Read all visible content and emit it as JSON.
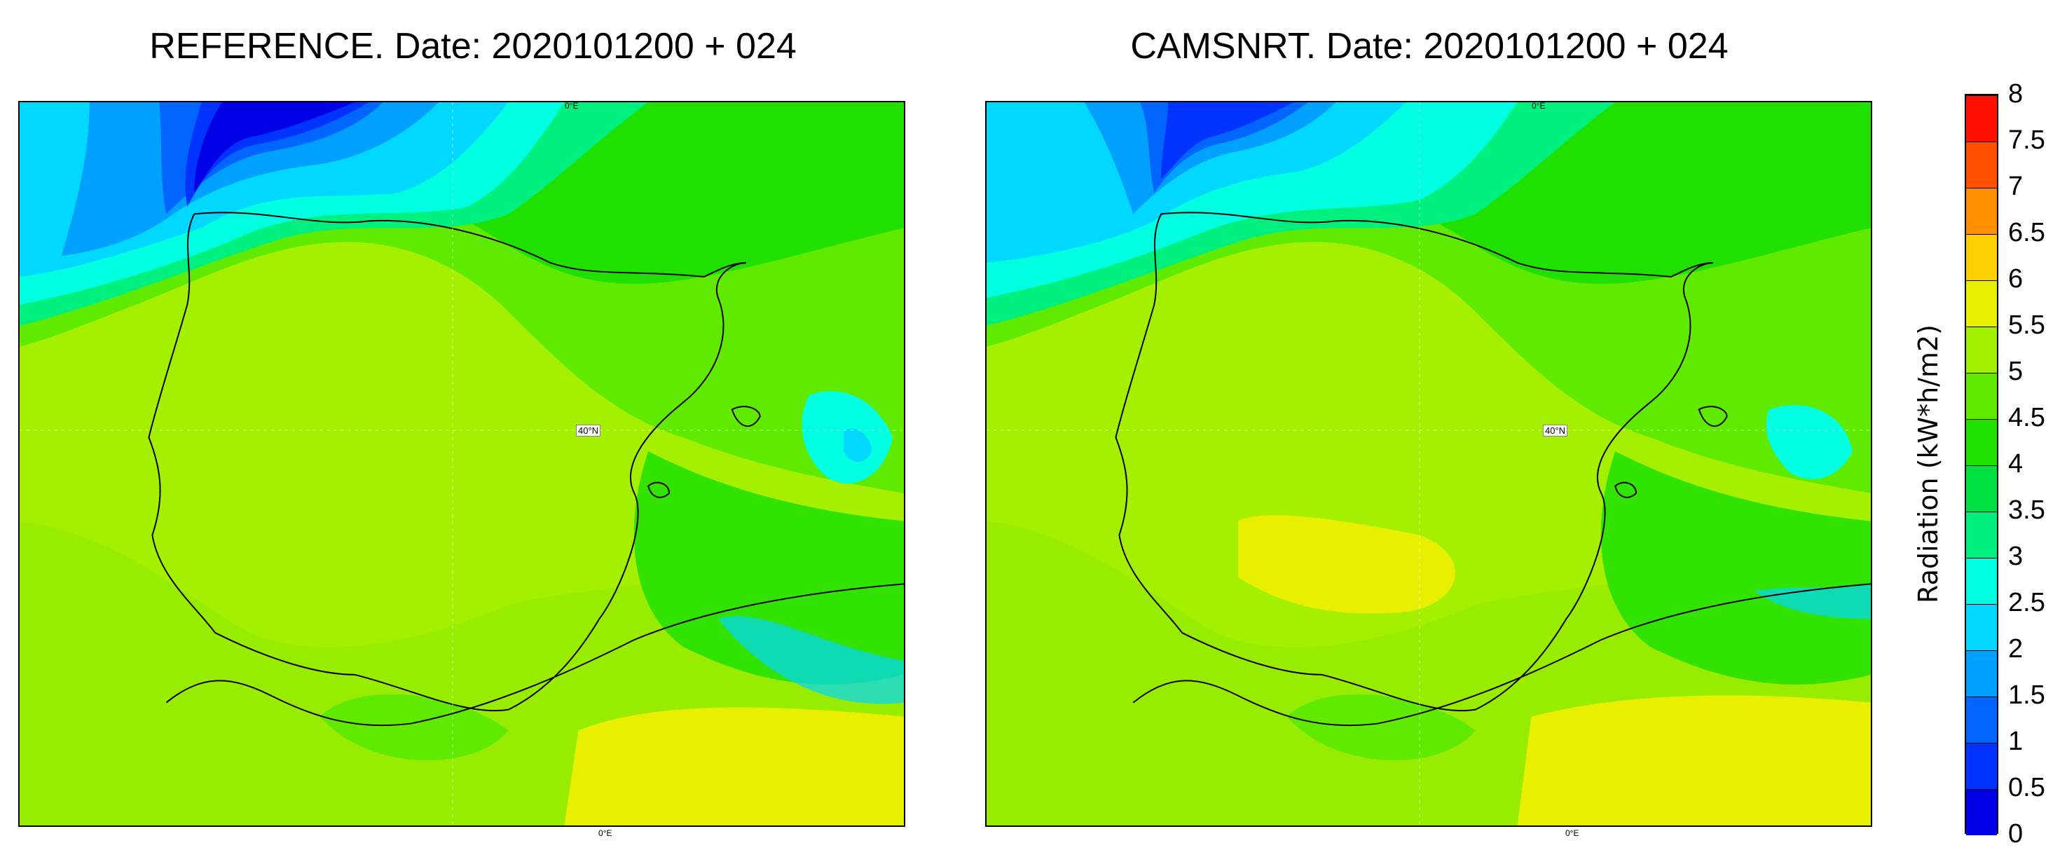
{
  "panels": [
    {
      "title": "REFERENCE. Date: 2020101200 + 024"
    },
    {
      "title": "CAMSNRT. Date: 2020101200 + 024"
    }
  ],
  "grid_labels": {
    "lon_top": "0°E",
    "lon_bottom": "0°E",
    "lat": "40°N"
  },
  "colorbar": {
    "label": "Radiation (kW*h/m2)",
    "ticks": [
      "0",
      "0.5",
      "1",
      "1.5",
      "2",
      "2.5",
      "3",
      "3.5",
      "4",
      "4.5",
      "5",
      "5.5",
      "6",
      "6.5",
      "7",
      "7.5",
      "8"
    ],
    "colors": [
      "#0000e6",
      "#0033ff",
      "#0066ff",
      "#00a0ff",
      "#00d8ff",
      "#00ffe0",
      "#00f080",
      "#00e040",
      "#20e000",
      "#60ea00",
      "#a0f000",
      "#e8f000",
      "#ffd000",
      "#ff9000",
      "#ff5000",
      "#ff1000"
    ]
  }
}
